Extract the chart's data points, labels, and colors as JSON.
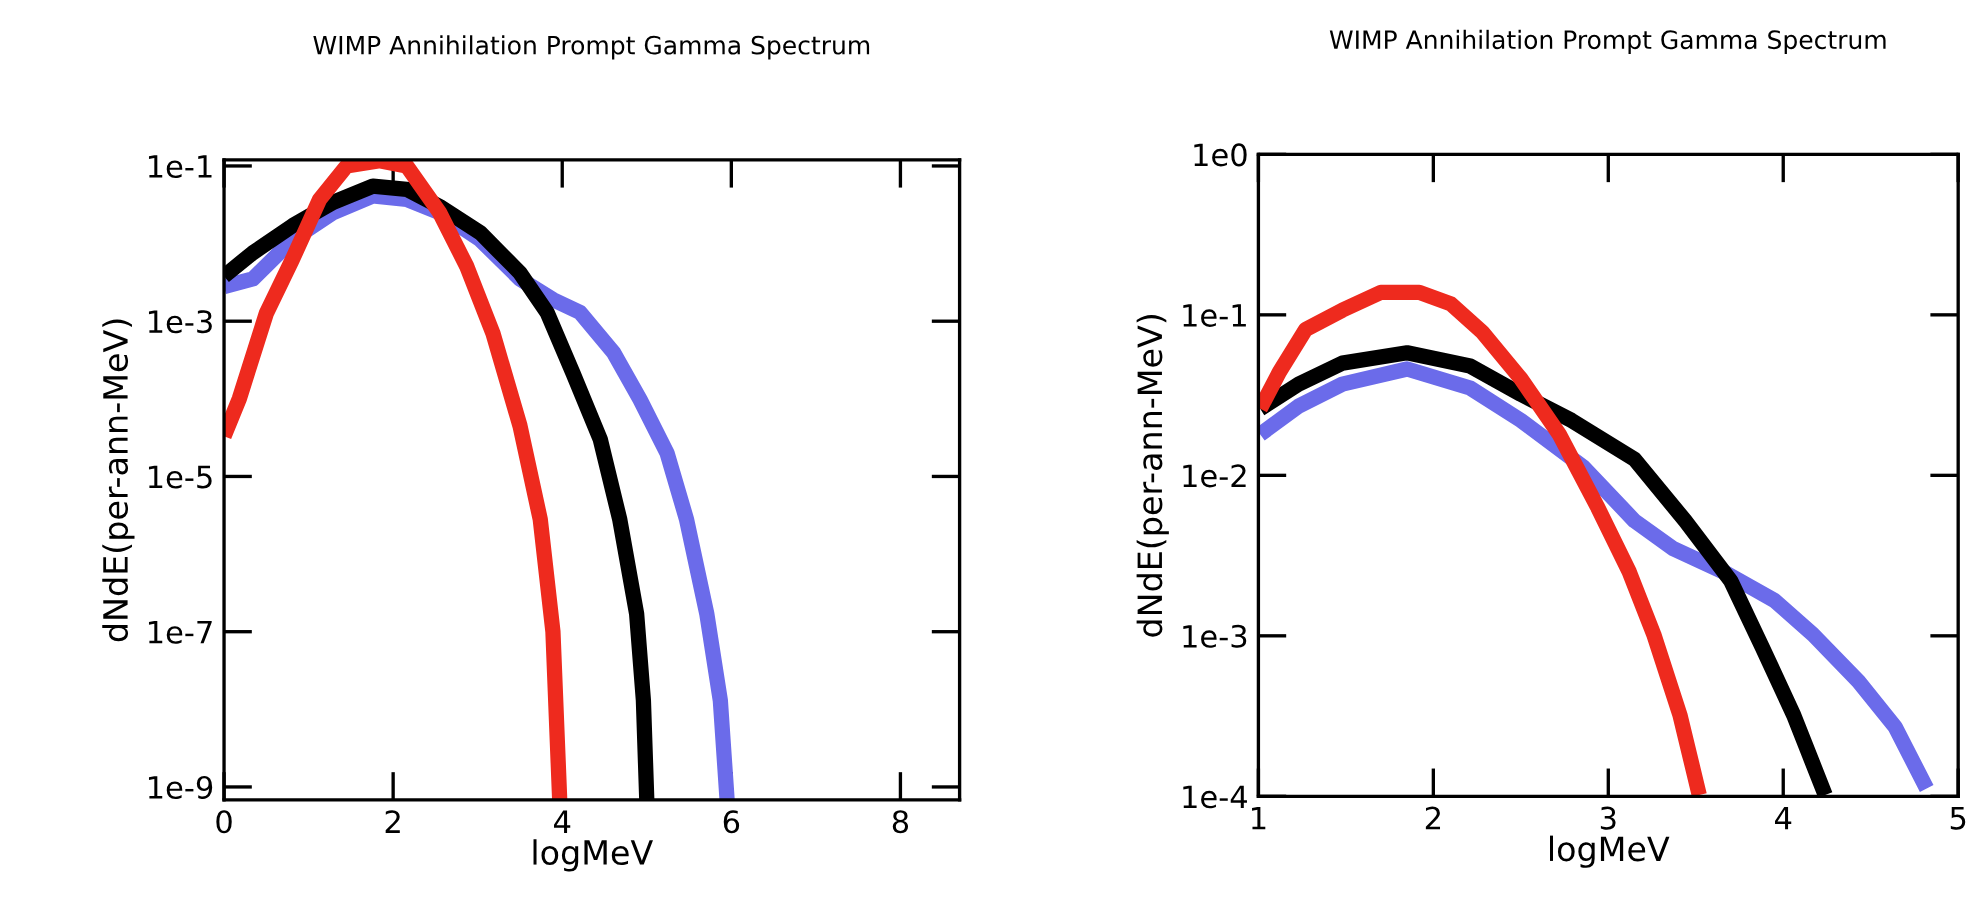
{
  "chart_data": [
    {
      "type": "line",
      "title": "WIMP Annihilation Prompt Gamma Spectrum",
      "xlabel": "logMeV",
      "ylabel": "dNdE(per-ann-MeV)",
      "log": "y",
      "grid": false,
      "marker": "none",
      "line_style": "solid",
      "xlim": [
        0,
        8.7
      ],
      "ylim": [
        6.8e-10,
        0.12
      ],
      "xticks": [
        0,
        2,
        4,
        6,
        8
      ],
      "yticks": [
        {
          "value": 0.1,
          "label": "1e-1"
        },
        {
          "value": 0.001,
          "label": "1e-3"
        },
        {
          "value": 1e-05,
          "label": "1e-5"
        },
        {
          "value": 1e-07,
          "label": "1e-7"
        },
        {
          "value": 1e-09,
          "label": "1e-9"
        }
      ],
      "series": [
        {
          "color": "#6b6bea",
          "x": [
            0,
            0.34,
            0.81,
            1.29,
            1.76,
            2.16,
            2.55,
            3.03,
            3.5,
            3.89,
            4.21,
            4.61,
            4.92,
            5.24,
            5.47,
            5.71,
            5.87,
            5.95
          ],
          "values": [
            0.0028,
            0.0035,
            0.0112,
            0.025,
            0.041,
            0.037,
            0.025,
            0.0112,
            0.0035,
            0.0019,
            0.0013,
            0.00039,
            9.8e-05,
            2e-05,
            2.8e-06,
            1.7e-07,
            1.3e-08,
            6.8e-10
          ]
        },
        {
          "color": "#000000",
          "x": [
            0,
            0.34,
            0.81,
            1.29,
            1.76,
            2.16,
            2.55,
            3.03,
            3.5,
            3.82,
            4.13,
            4.45,
            4.68,
            4.88,
            4.96,
            5.0
          ],
          "values": [
            0.0038,
            0.0076,
            0.017,
            0.034,
            0.055,
            0.05,
            0.03,
            0.0138,
            0.0042,
            0.0013,
            0.00021,
            3e-05,
            2.8e-06,
            1.7e-07,
            1.3e-08,
            6.8e-10
          ]
        },
        {
          "color": "#ee2a1e",
          "x": [
            0,
            0.18,
            0.5,
            0.81,
            1.13,
            1.45,
            1.84,
            2.16,
            2.55,
            2.87,
            3.18,
            3.5,
            3.74,
            3.89,
            3.97
          ],
          "values": [
            3.3e-05,
            0.0001,
            0.00126,
            0.0063,
            0.037,
            0.1,
            0.117,
            0.1,
            0.025,
            0.0051,
            0.0007,
            4.5e-05,
            2.8e-06,
            1e-07,
            6.8e-10
          ]
        }
      ]
    },
    {
      "type": "line",
      "title": "WIMP Annihilation Prompt Gamma Spectrum",
      "xlabel": "logMeV",
      "ylabel": "dNdE(per-ann-MeV)",
      "log": "y",
      "grid": false,
      "marker": "none",
      "line_style": "solid",
      "xlim": [
        1,
        5
      ],
      "ylim": [
        0.0001,
        1
      ],
      "xticks": [
        1,
        2,
        3,
        4,
        5
      ],
      "yticks": [
        {
          "value": 1,
          "label": "1e0"
        },
        {
          "value": 0.1,
          "label": "1e-1"
        },
        {
          "value": 0.01,
          "label": "1e-2"
        },
        {
          "value": 0.001,
          "label": "1e-3"
        },
        {
          "value": 0.0001,
          "label": "1e-4"
        }
      ],
      "series": [
        {
          "color": "#6b6bea",
          "x": [
            1.01,
            1.23,
            1.48,
            1.85,
            2.21,
            2.5,
            2.86,
            3.15,
            3.37,
            3.66,
            3.95,
            4.17,
            4.43,
            4.64,
            4.82
          ],
          "values": [
            0.018,
            0.027,
            0.037,
            0.046,
            0.035,
            0.022,
            0.0112,
            0.0052,
            0.0035,
            0.0025,
            0.00166,
            0.00102,
            0.00052,
            0.00027,
            0.000112
          ]
        },
        {
          "color": "#000000",
          "x": [
            1.01,
            1.23,
            1.48,
            1.85,
            2.21,
            2.5,
            2.79,
            3.15,
            3.44,
            3.7,
            3.88,
            4.06,
            4.24
          ],
          "values": [
            0.026,
            0.037,
            0.05,
            0.058,
            0.048,
            0.032,
            0.022,
            0.0126,
            0.0052,
            0.0022,
            0.00085,
            0.00032,
            0.000102
          ]
        },
        {
          "color": "#ee2a1e",
          "x": [
            1.01,
            1.12,
            1.27,
            1.48,
            1.7,
            1.92,
            2.1,
            2.28,
            2.5,
            2.72,
            2.94,
            3.12,
            3.26,
            3.41,
            3.52
          ],
          "values": [
            0.026,
            0.044,
            0.081,
            0.107,
            0.138,
            0.138,
            0.117,
            0.078,
            0.04,
            0.018,
            0.0063,
            0.0025,
            0.00102,
            0.00032,
            0.000102
          ]
        }
      ]
    }
  ]
}
